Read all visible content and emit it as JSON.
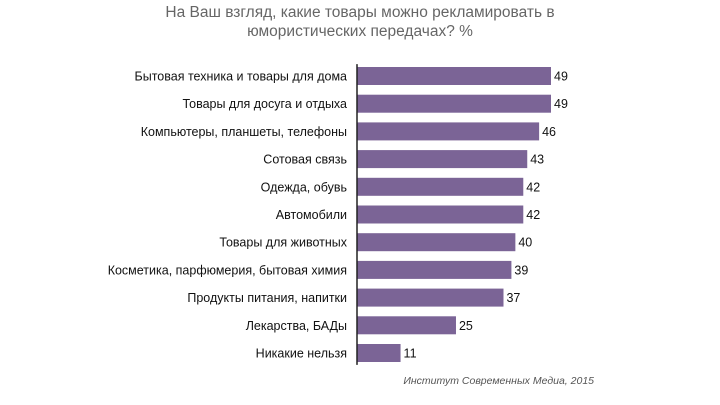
{
  "title_line1": "На Ваш взгляд, какие товары можно рекламировать в",
  "title_line2": "юмористических передачах? %",
  "source": "Институт Современных Медиа, 2015",
  "colors": {
    "bar": "#7b6496",
    "axis": "#222222",
    "label": "#111111"
  },
  "chart_data": {
    "type": "bar",
    "orientation": "horizontal",
    "title": "На Ваш взгляд, какие товары можно рекламировать в юмористических передачах? %",
    "categories": [
      "Бытовая техника и товары для дома",
      "Товары для досуга и отдыха",
      "Компьютеры, планшеты, телефоны",
      "Сотовая связь",
      "Одежда, обувь",
      "Автомобили",
      "Товары для животных",
      "Косметика, парфюмерия, бытовая химия",
      "Продукты питания, напитки",
      "Лекарства, БАДы",
      "Никакие нельзя"
    ],
    "values": [
      49,
      49,
      46,
      43,
      42,
      42,
      40,
      39,
      37,
      25,
      11
    ],
    "xlim": [
      0,
      49
    ],
    "grid": false,
    "legend": "none"
  }
}
